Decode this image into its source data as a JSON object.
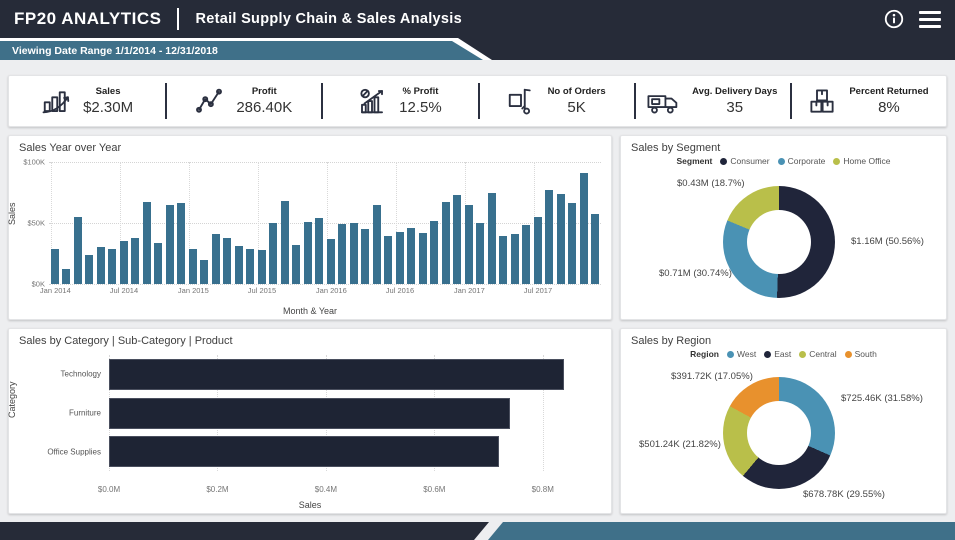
{
  "header": {
    "logo": "FP20 ANALYTICS",
    "title": "Retail Supply Chain & Sales Analysis",
    "banner": "Viewing Date Range 1/1/2014 - 12/31/2018"
  },
  "kpis": [
    {
      "label": "Sales",
      "value": "$2.30M",
      "icon": "bar-growth-icon"
    },
    {
      "label": "Profit",
      "value": "286.40K",
      "icon": "line-chart-icon"
    },
    {
      "label": "% Profit",
      "value": "12.5%",
      "icon": "percent-chart-icon"
    },
    {
      "label": "No of Orders",
      "value": "5K",
      "icon": "hand-truck-icon"
    },
    {
      "label": "Avg. Delivery Days",
      "value": "35",
      "icon": "delivery-truck-icon"
    },
    {
      "label": "Percent Returned",
      "value": "8%",
      "icon": "boxes-icon"
    }
  ],
  "colors": {
    "navy": "#262b38",
    "teal": "#3f7089",
    "bar_blue": "#38708e",
    "donut_dark": "#20253a",
    "donut_blue": "#4a92b4",
    "donut_olive": "#b9bf4a",
    "donut_orange": "#e8912d"
  },
  "chart_data": [
    {
      "type": "bar",
      "title": "Sales Year over Year",
      "xlabel": "Month & Year",
      "ylabel": "Sales",
      "ylim_k": [
        0,
        100
      ],
      "yticks": [
        "$0K",
        "$50K",
        "$100K"
      ],
      "xtick_every": 6,
      "categories": [
        "Jan 2014",
        "Feb 2014",
        "Mar 2014",
        "Apr 2014",
        "May 2014",
        "Jun 2014",
        "Jul 2014",
        "Aug 2014",
        "Sep 2014",
        "Oct 2014",
        "Nov 2014",
        "Dec 2014",
        "Jan 2015",
        "Feb 2015",
        "Mar 2015",
        "Apr 2015",
        "May 2015",
        "Jun 2015",
        "Jul 2015",
        "Aug 2015",
        "Sep 2015",
        "Oct 2015",
        "Nov 2015",
        "Dec 2015",
        "Jan 2016",
        "Feb 2016",
        "Mar 2016",
        "Apr 2016",
        "May 2016",
        "Jun 2016",
        "Jul 2016",
        "Aug 2016",
        "Sep 2016",
        "Oct 2016",
        "Nov 2016",
        "Dec 2016",
        "Jan 2017",
        "Feb 2017",
        "Mar 2017",
        "Apr 2017",
        "May 2017",
        "Jun 2017",
        "Jul 2017",
        "Aug 2017",
        "Sep 2017",
        "Oct 2017",
        "Nov 2017",
        "Dec 2017"
      ],
      "values_k": [
        29,
        12,
        55,
        24,
        30,
        29,
        35,
        38,
        67,
        34,
        65,
        66,
        29,
        20,
        41,
        38,
        31,
        29,
        28,
        50,
        68,
        32,
        51,
        54,
        37,
        49,
        50,
        45,
        65,
        39,
        43,
        46,
        42,
        52,
        67,
        73,
        65,
        50,
        75,
        39,
        41,
        48,
        55,
        77,
        74,
        66,
        91,
        57
      ]
    },
    {
      "type": "pie",
      "title": "Sales by Segment",
      "legend_title": "Segment",
      "slices": [
        {
          "name": "Consumer",
          "value_pct": 50.56,
          "label": "$1.16M (50.56%)",
          "color": "#20253a"
        },
        {
          "name": "Corporate",
          "value_pct": 30.74,
          "label": "$0.71M (30.74%)",
          "color": "#4a92b4"
        },
        {
          "name": "Home Office",
          "value_pct": 18.7,
          "label": "$0.43M (18.7%)",
          "color": "#b9bf4a"
        }
      ]
    },
    {
      "type": "bar",
      "title": "Sales by Category | Sub-Category | Product",
      "xlabel": "Sales",
      "ylabel": "Category",
      "orientation": "horizontal",
      "xlim_m": [
        0,
        0.9
      ],
      "xticks": [
        {
          "label": "$0.0M",
          "value_m": 0.0
        },
        {
          "label": "$0.2M",
          "value_m": 0.2
        },
        {
          "label": "$0.4M",
          "value_m": 0.4
        },
        {
          "label": "$0.6M",
          "value_m": 0.6
        },
        {
          "label": "$0.8M",
          "value_m": 0.8
        }
      ],
      "categories": [
        "Technology",
        "Furniture",
        "Office Supplies"
      ],
      "values_m": [
        0.84,
        0.74,
        0.72
      ]
    },
    {
      "type": "pie",
      "title": "Sales by Region",
      "legend_title": "Region",
      "slices": [
        {
          "name": "West",
          "value_pct": 31.58,
          "label": "$725.46K (31.58%)",
          "color": "#4a92b4"
        },
        {
          "name": "East",
          "value_pct": 29.55,
          "label": "$678.78K (29.55%)",
          "color": "#20253a"
        },
        {
          "name": "Central",
          "value_pct": 21.82,
          "label": "$501.24K (21.82%)",
          "color": "#b9bf4a"
        },
        {
          "name": "South",
          "value_pct": 17.05,
          "label": "$391.72K (17.05%)",
          "color": "#e8912d"
        }
      ]
    }
  ]
}
